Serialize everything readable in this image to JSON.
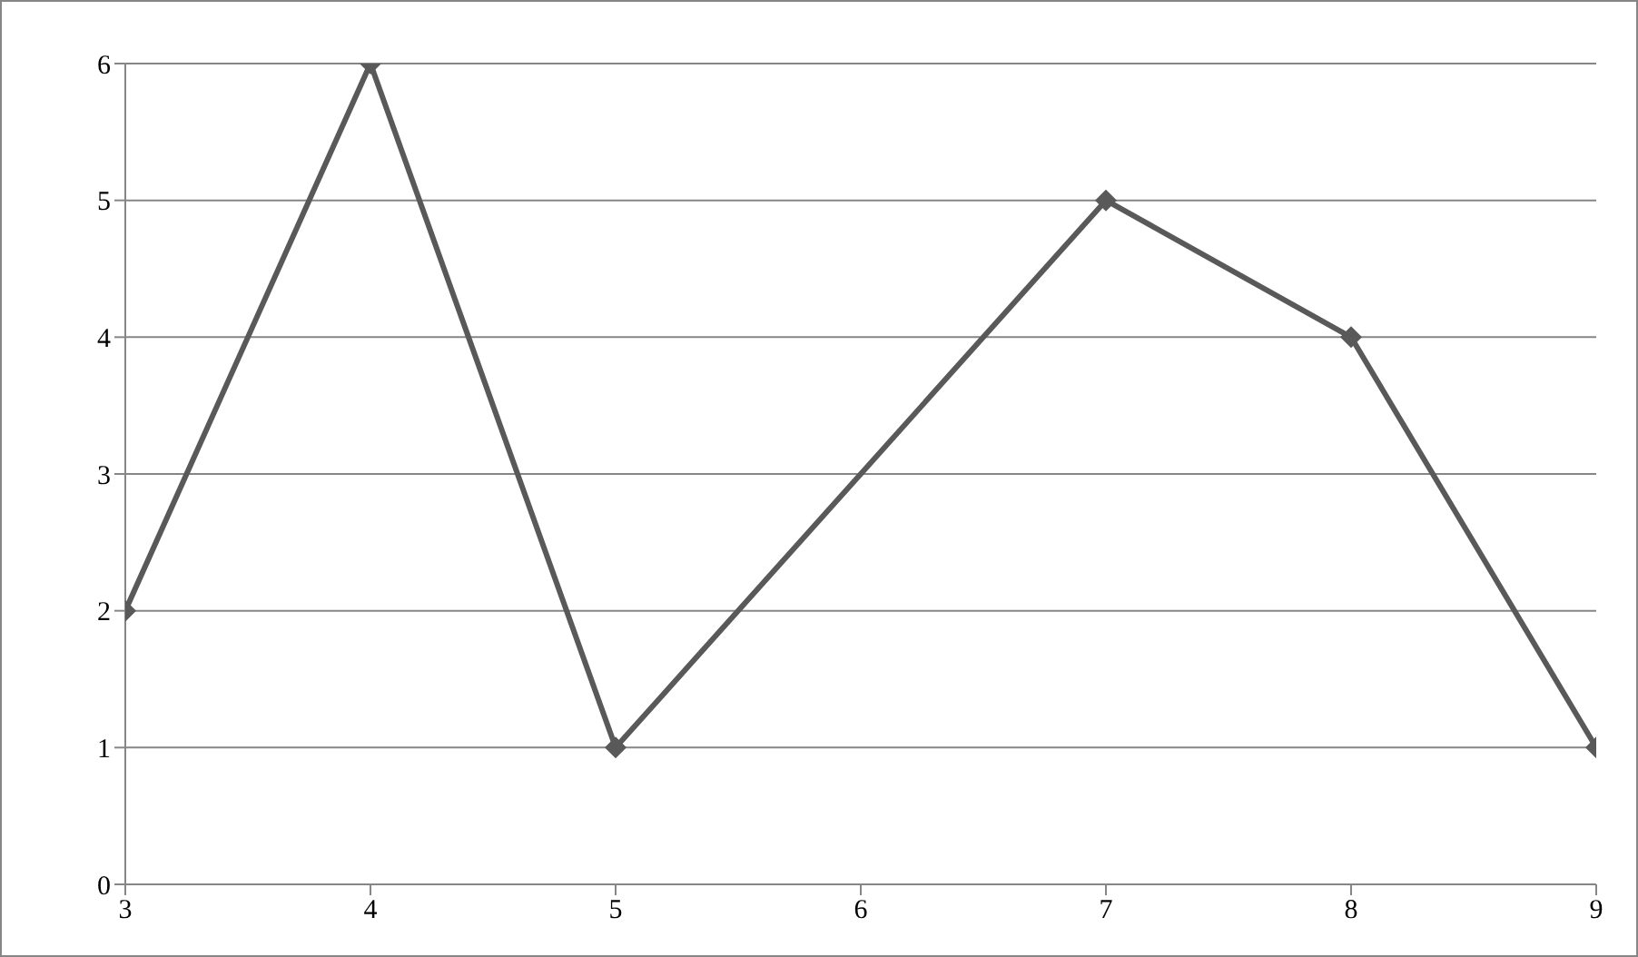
{
  "chart_data": {
    "type": "line",
    "x": [
      3,
      4,
      5,
      7,
      8,
      9
    ],
    "series": [
      {
        "color": "#595959",
        "values": [
          2,
          6,
          1,
          5,
          4,
          1
        ]
      }
    ],
    "xlim": [
      3,
      9
    ],
    "xticks": [
      3,
      4,
      5,
      6,
      7,
      8,
      9
    ],
    "ylim": [
      0,
      6
    ],
    "yticks": [
      0,
      1,
      2,
      3,
      4,
      5,
      6
    ],
    "grid": "y",
    "marker": "diamond",
    "line_style": "solid",
    "legend": false
  }
}
